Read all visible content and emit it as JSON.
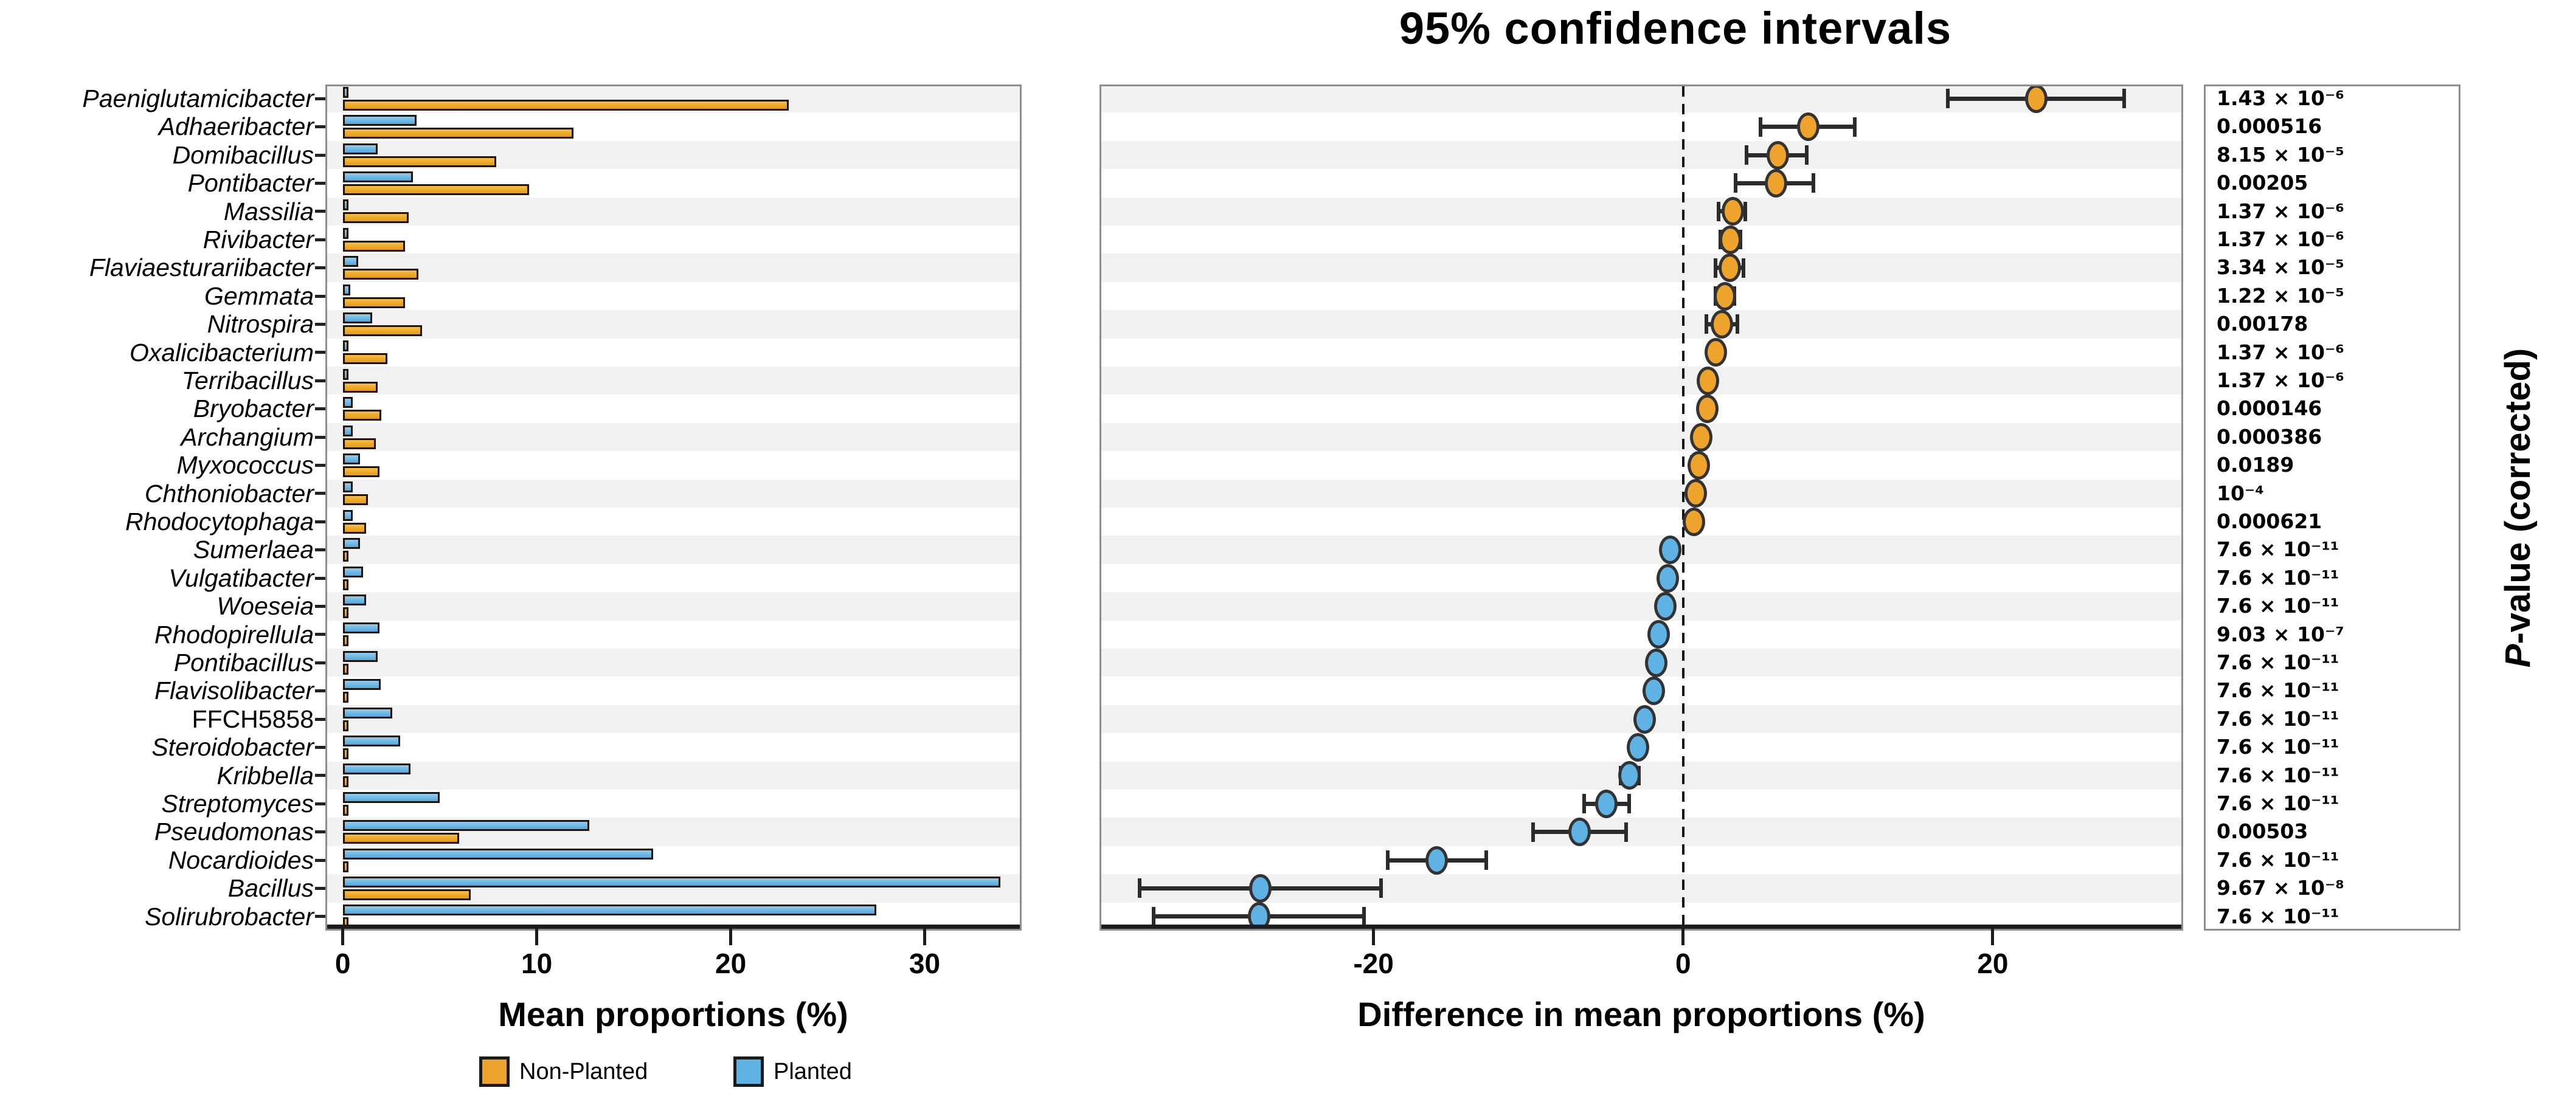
{
  "title": "95% confidence intervals",
  "legend": {
    "non_planted": "Non-Planted",
    "planted": "Planted"
  },
  "p_column": {
    "label_italic": "P",
    "label_rest": "-value (corrected)"
  },
  "colors": {
    "non_planted": "#EDA32C",
    "planted": "#5FB3E4",
    "ci_bar": "#2b2b2b",
    "row_band": "#f1f1f1",
    "panel_border": "#8e8e8e"
  },
  "chart_data": {
    "type": "bar",
    "subtype": "extended-error-bar",
    "title": "95% confidence intervals",
    "series_legend": [
      "Non-Planted",
      "Planted"
    ],
    "left_plot": {
      "xlabel": "Mean proportions (%)",
      "ticks": [
        0,
        10,
        20,
        30
      ],
      "xlim": [
        -0.9,
        35.0
      ]
    },
    "diff_plot": {
      "xlabel": "Difference in mean proportions (%)",
      "ticks": [
        -20,
        0,
        20
      ],
      "xlim": [
        -37.7,
        32.3
      ],
      "zero_line": true
    },
    "p_plot": {
      "ylabel": "P-value (corrected)"
    },
    "rows": [
      {
        "taxon": "Paeniglutamicibacter",
        "planted": 0.15,
        "non_planted": 23.0,
        "diff": 22.8,
        "ci": [
          17.1,
          28.5
        ],
        "p": "1.43 × 10⁻⁶"
      },
      {
        "taxon": "Adhaeribacter",
        "planted": 3.8,
        "non_planted": 11.9,
        "diff": 8.1,
        "ci": [
          5.0,
          11.1
        ],
        "p": "0.000516"
      },
      {
        "taxon": "Domibacillus",
        "planted": 1.8,
        "non_planted": 7.9,
        "diff": 6.1,
        "ci": [
          4.1,
          8.0
        ],
        "p": "8.15 × 10⁻⁵"
      },
      {
        "taxon": "Pontibacter",
        "planted": 3.6,
        "non_planted": 9.6,
        "diff": 6.0,
        "ci": [
          3.4,
          8.4
        ],
        "p": "0.00205"
      },
      {
        "taxon": "Massilia",
        "planted": 0.2,
        "non_planted": 3.4,
        "diff": 3.2,
        "ci": [
          2.3,
          4.0
        ],
        "p": "1.37 × 10⁻⁶"
      },
      {
        "taxon": "Rivibacter",
        "planted": 0.15,
        "non_planted": 3.2,
        "diff": 3.05,
        "ci": [
          2.4,
          3.7
        ],
        "p": "1.37 × 10⁻⁶"
      },
      {
        "taxon": "Flaviaesturariibacter",
        "planted": 0.8,
        "non_planted": 3.9,
        "diff": 3.0,
        "ci": [
          2.1,
          3.9
        ],
        "p": "3.34 × 10⁻⁵"
      },
      {
        "taxon": "Gemmata",
        "planted": 0.4,
        "non_planted": 3.2,
        "diff": 2.7,
        "ci": [
          2.1,
          3.3
        ],
        "p": "1.22 × 10⁻⁵"
      },
      {
        "taxon": "Nitrospira",
        "planted": 1.5,
        "non_planted": 4.1,
        "diff": 2.5,
        "ci": [
          1.5,
          3.5
        ],
        "p": "0.00178"
      },
      {
        "taxon": "Oxalicibacterium",
        "planted": 0.2,
        "non_planted": 2.3,
        "diff": 2.1,
        "ci": [
          1.75,
          2.45
        ],
        "p": "1.37 × 10⁻⁶"
      },
      {
        "taxon": "Terribacillus",
        "planted": 0.2,
        "non_planted": 1.8,
        "diff": 1.6,
        "ci": [
          1.3,
          1.9
        ],
        "p": "1.37 × 10⁻⁶"
      },
      {
        "taxon": "Bryobacter",
        "planted": 0.5,
        "non_planted": 2.0,
        "diff": 1.55,
        "ci": [
          1.15,
          1.95
        ],
        "p": "0.000146"
      },
      {
        "taxon": "Archangium",
        "planted": 0.5,
        "non_planted": 1.7,
        "diff": 1.15,
        "ci": [
          0.8,
          1.5
        ],
        "p": "0.000386"
      },
      {
        "taxon": "Myxococcus",
        "planted": 0.9,
        "non_planted": 1.9,
        "diff": 1.0,
        "ci": [
          0.55,
          1.45
        ],
        "p": "0.0189"
      },
      {
        "taxon": "Chthoniobacter",
        "planted": 0.5,
        "non_planted": 1.3,
        "diff": 0.8,
        "ci": [
          0.55,
          1.05
        ],
        "p": "10⁻⁴"
      },
      {
        "taxon": "Rhodocytophaga",
        "planted": 0.5,
        "non_planted": 1.2,
        "diff": 0.7,
        "ci": [
          0.4,
          1.0
        ],
        "p": "0.000621"
      },
      {
        "taxon": "Sumerlaea",
        "planted": 0.9,
        "non_planted": 0.05,
        "diff": -0.85,
        "ci": [
          -1.05,
          -0.65
        ],
        "p": "7.6 × 10⁻¹¹"
      },
      {
        "taxon": "Vulgatibacter",
        "planted": 1.05,
        "non_planted": 0.05,
        "diff": -1.0,
        "ci": [
          -1.2,
          -0.8
        ],
        "p": "7.6 × 10⁻¹¹"
      },
      {
        "taxon": "Woeseia",
        "planted": 1.2,
        "non_planted": 0.05,
        "diff": -1.15,
        "ci": [
          -1.4,
          -0.9
        ],
        "p": "7.6 × 10⁻¹¹"
      },
      {
        "taxon": "Rhodopirellula",
        "planted": 1.9,
        "non_planted": 0.3,
        "diff": -1.6,
        "ci": [
          -1.9,
          -1.3
        ],
        "p": "9.03 × 10⁻⁷"
      },
      {
        "taxon": "Pontibacillus",
        "planted": 1.8,
        "non_planted": 0.05,
        "diff": -1.75,
        "ci": [
          -2.0,
          -1.5
        ],
        "p": "7.6 × 10⁻¹¹"
      },
      {
        "taxon": "Flavisolibacter",
        "planted": 1.95,
        "non_planted": 0.05,
        "diff": -1.9,
        "ci": [
          -2.2,
          -1.6
        ],
        "p": "7.6 × 10⁻¹¹"
      },
      {
        "taxon": "FFCH5858",
        "upright": true,
        "planted": 2.55,
        "non_planted": 0.05,
        "diff": -2.5,
        "ci": [
          -2.85,
          -2.15
        ],
        "p": "7.6 × 10⁻¹¹"
      },
      {
        "taxon": "Steroidobacter",
        "planted": 2.95,
        "non_planted": 0.05,
        "diff": -2.9,
        "ci": [
          -3.3,
          -2.5
        ],
        "p": "7.6 × 10⁻¹¹"
      },
      {
        "taxon": "Kribbella",
        "planted": 3.5,
        "non_planted": 0.05,
        "diff": -3.45,
        "ci": [
          -4.05,
          -2.85
        ],
        "p": "7.6 × 10⁻¹¹"
      },
      {
        "taxon": "Streptomyces",
        "planted": 5.0,
        "non_planted": 0.05,
        "diff": -4.95,
        "ci": [
          -6.4,
          -3.5
        ],
        "p": "7.6 × 10⁻¹¹"
      },
      {
        "taxon": "Pseudomonas",
        "planted": 12.7,
        "non_planted": 6.0,
        "diff": -6.7,
        "ci": [
          -9.7,
          -3.7
        ],
        "p": "0.00503"
      },
      {
        "taxon": "Nocardioides",
        "planted": 16.0,
        "non_planted": 0.1,
        "diff": -15.9,
        "ci": [
          -19.1,
          -12.7
        ],
        "p": "7.6 × 10⁻¹¹"
      },
      {
        "taxon": "Bacillus",
        "planted": 33.9,
        "non_planted": 6.6,
        "diff": -27.3,
        "ci": [
          -35.1,
          -19.5
        ],
        "p": "9.67 × 10⁻⁸"
      },
      {
        "taxon": "Solirubrobacter",
        "planted": 27.5,
        "non_planted": 0.1,
        "diff": -27.4,
        "ci": [
          -34.2,
          -20.6
        ],
        "p": "7.6 × 10⁻¹¹"
      }
    ]
  }
}
